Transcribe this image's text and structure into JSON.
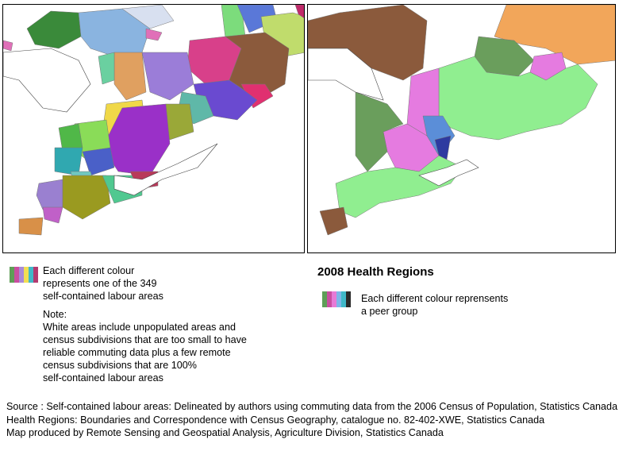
{
  "left_map": {
    "legend_text": [
      "Each different colour",
      "represents one of the 349",
      "self-contained labour areas"
    ],
    "note_title": "Note:",
    "note_lines": [
      "White areas include unpopulated areas and",
      "census subdivisions that are too small to have",
      "reliable commuting data plus a few remote",
      "census subdivisions that are 100%",
      "self-contained labour areas"
    ],
    "swatch_colors": [
      "#5e9e57",
      "#c94ea0",
      "#a98ad8",
      "#f2de52",
      "#3fb8c8",
      "#b43a70"
    ]
  },
  "right_map": {
    "title": "2008 Health Regions",
    "legend_text": [
      "Each different colour reprensents",
      "a peer group"
    ],
    "swatch_colors": [
      "#5e9e57",
      "#c94ea0",
      "#e77ad6",
      "#7eb6e8",
      "#3fb8c8",
      "#2a2a2a"
    ],
    "colors": {
      "brown": "#8b5a3c",
      "orange": "#f2a65a",
      "light_green": "#90ee90",
      "dark_green": "#6a9e5c",
      "pink": "#e57be0",
      "blue": "#5b8ed8",
      "navy": "#2e3aa0"
    }
  },
  "source_lines": [
    "Source : Self-contained labour areas: Delineated by authors using commuting data from the 2006 Census of Population, Statistics Canada",
    "Health Regions: Boundaries and Correspondence with Census Geography, catalogue no. 82-402-XWE, Statistics Canada",
    "Map produced by Remote Sensing and Geospatial Analysis, Agriculture Division, Statistics Canada"
  ]
}
